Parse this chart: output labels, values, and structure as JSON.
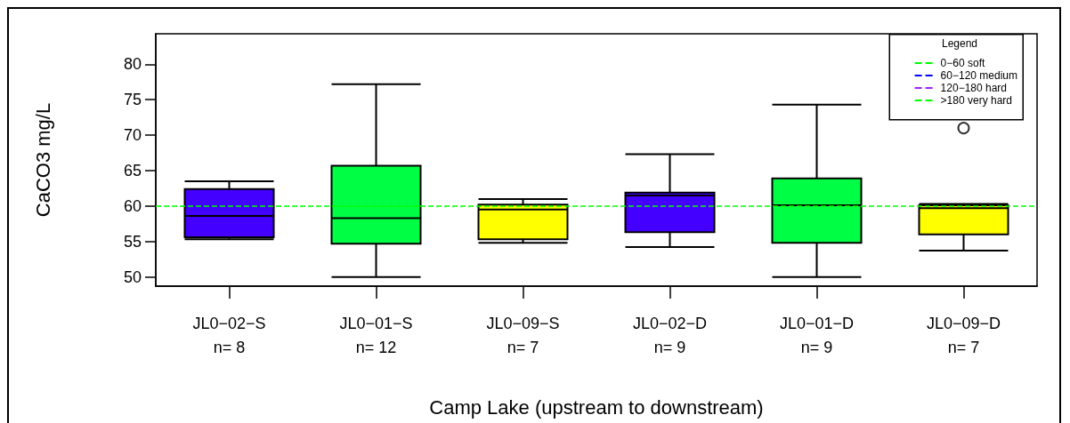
{
  "chart_data": {
    "type": "box",
    "xlabel": "Camp Lake (upstream to downstream)",
    "ylabel": "CaCO3 mg/L",
    "legend_title": "Legend",
    "categories": [
      "JL0−02−S\nn= 8",
      "JL0−01−S\nn= 12",
      "JL0−09−S\nn= 7",
      "JL0−02−D\nn= 9",
      "JL0−01−D\nn= 9",
      "JL0−09−D\nn= 7"
    ],
    "ylim": [
      48.7,
      84.3
    ],
    "yticks": [
      50,
      55,
      60,
      65,
      70,
      75,
      80
    ],
    "grid": false,
    "legend": "top right",
    "series": [
      {
        "type": "box",
        "colors": [
          "#4400ff",
          "#00ff44",
          "#ffff00",
          "#4400ff",
          "#00ff44",
          "#ffff00"
        ],
        "boxes": [
          {
            "low": 55.3,
            "q1": 55.6,
            "median": 58.6,
            "q3": 62.4,
            "high": 63.5
          },
          {
            "low": 50.0,
            "q1": 54.7,
            "median": 58.3,
            "q3": 65.7,
            "high": 77.2
          },
          {
            "low": 54.8,
            "q1": 55.3,
            "median": 59.5,
            "q3": 60.2,
            "high": 61.0
          },
          {
            "low": 54.2,
            "q1": 56.3,
            "median": 61.5,
            "q3": 61.9,
            "high": 67.3
          },
          {
            "low": 50.0,
            "q1": 54.8,
            "median": 60.1,
            "q3": 63.9,
            "high": 74.3
          },
          {
            "low": 53.7,
            "q1": 56.0,
            "median": 59.7,
            "q3": 60.1,
            "high": 60.3,
            "outliers": [
              71.0
            ]
          }
        ]
      },
      {
        "type": "line",
        "name": "0−60 soft",
        "color": "#00ff00",
        "line_style": "dashed",
        "values": [
          null,
          null,
          null,
          null,
          null,
          null
        ]
      },
      {
        "type": "line",
        "name": "60−120 medium",
        "color": "#0000ff",
        "line_style": "dashed",
        "values": [
          null,
          null,
          null,
          null,
          null,
          null
        ]
      },
      {
        "type": "line",
        "name": "120−180 hard",
        "color": "#a020f0",
        "line_style": "dashed",
        "values": [
          null,
          null,
          null,
          null,
          null,
          null
        ]
      },
      {
        "type": "line",
        "name": ">180 very hard",
        "color": "#00ff00",
        "line_style": "dashed",
        "values": [
          null,
          null,
          null,
          null,
          null,
          null
        ]
      }
    ],
    "ref_lines": [
      {
        "axis": "y",
        "value": 60,
        "color": "#00ff00",
        "line_style": "dashed"
      }
    ]
  }
}
